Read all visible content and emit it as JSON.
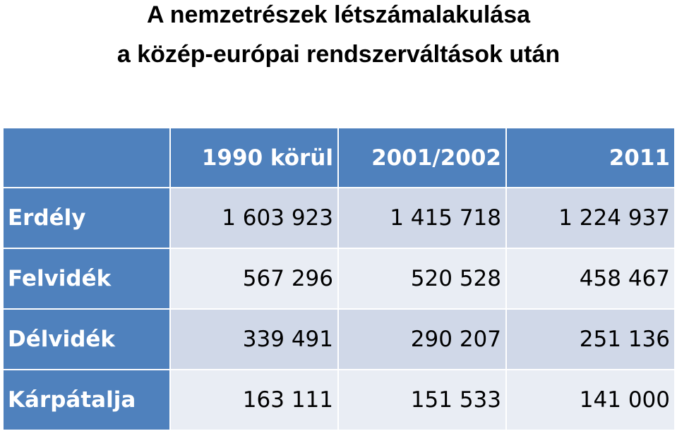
{
  "header": {
    "title_lines": [
      "A nemzetrészek létszámalakulása",
      "a közép-európai rendszerváltások után"
    ]
  },
  "table": {
    "columns": [
      "1990 körül",
      "2001/2002",
      "2011"
    ],
    "rows": [
      [
        "Erdély",
        "1 603 923",
        "1 415 718",
        "1 224 937"
      ],
      [
        "Felvidék",
        "567 296",
        "520 528",
        "458 467"
      ],
      [
        "Délvidék",
        "339 491",
        "290 207",
        "251 136"
      ],
      [
        "Kárpátalja",
        "163 111",
        "151 533",
        "141 000"
      ]
    ]
  }
}
